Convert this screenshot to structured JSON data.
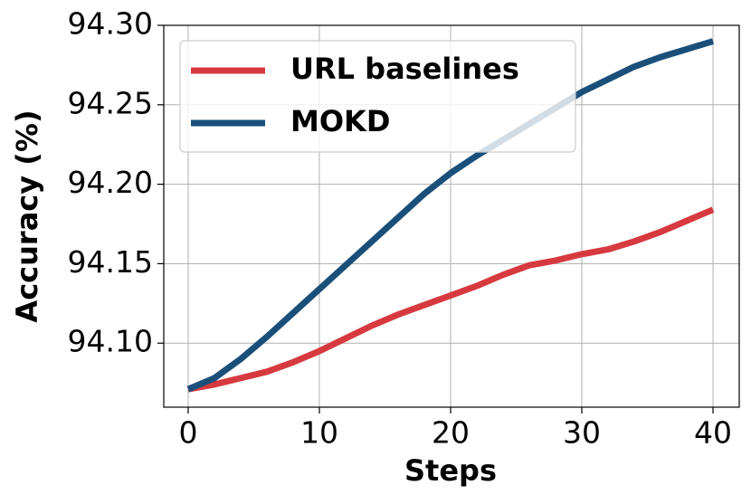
{
  "chart_data": {
    "type": "line",
    "x_label": "Steps",
    "y_label": "Accuracy (%)",
    "x": [
      0,
      2,
      4,
      6,
      8,
      10,
      12,
      14,
      16,
      18,
      20,
      22,
      24,
      26,
      28,
      30,
      32,
      34,
      36,
      38,
      40
    ],
    "series": [
      {
        "name": "URL baselines",
        "color": "#d63a3f",
        "values": [
          94.071,
          94.074,
          94.078,
          94.082,
          94.088,
          94.095,
          94.103,
          94.111,
          94.118,
          94.124,
          94.13,
          94.136,
          94.143,
          94.149,
          94.152,
          94.156,
          94.159,
          94.164,
          94.17,
          94.177,
          94.184
        ]
      },
      {
        "name": "MOKD",
        "color": "#1a4f7a",
        "values": [
          94.071,
          94.078,
          94.09,
          94.104,
          94.119,
          94.134,
          94.149,
          94.164,
          94.179,
          94.194,
          94.207,
          94.218,
          94.228,
          94.238,
          94.248,
          94.258,
          94.266,
          94.274,
          94.28,
          94.285,
          94.29
        ]
      }
    ],
    "xlim": [
      -1.86,
      42
    ],
    "ylim": [
      94.0597,
      94.3
    ],
    "xticks": [
      0,
      10,
      20,
      30,
      40
    ],
    "yticks": [
      {
        "value": 94.1,
        "label": "94.10"
      },
      94.15,
      {
        "value": 94.2,
        "label": "94.20"
      },
      94.25,
      {
        "value": 94.3,
        "label": "94.30"
      }
    ],
    "grid": true,
    "legend": "upper left"
  }
}
